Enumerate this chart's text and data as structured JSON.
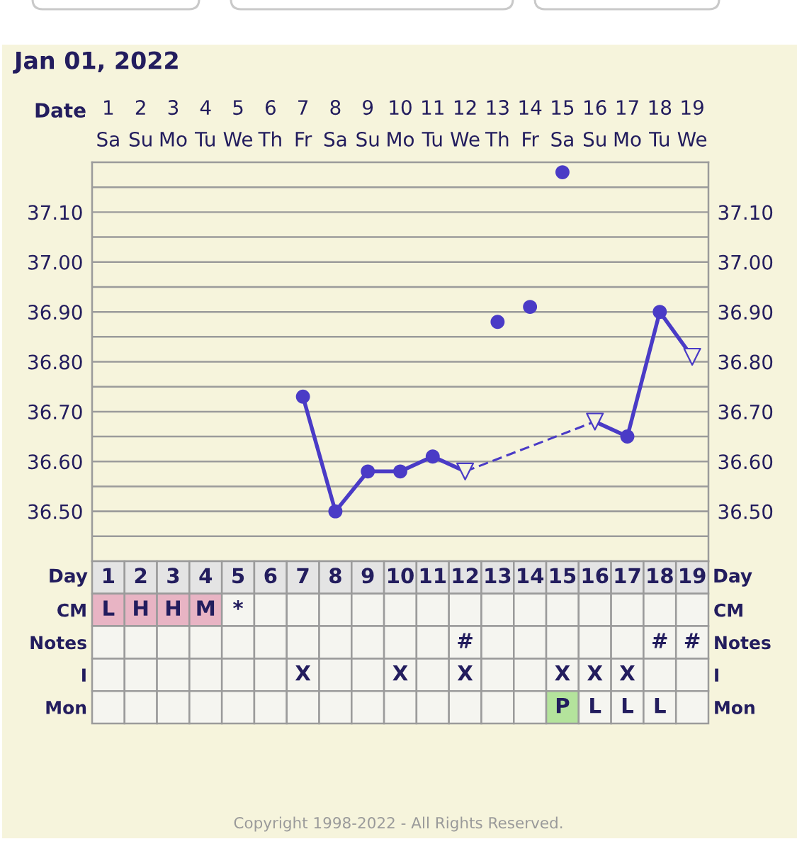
{
  "chart_data": [
    {
      "type": "line",
      "title": "Jan 01, 2022",
      "xlabel": "Date",
      "categories": [
        "1\nSa",
        "2\nSu",
        "3\nMo",
        "4\nTu",
        "5\nWe",
        "6\nTh",
        "7\nFr",
        "8\nSa",
        "9\nSu",
        "10\nMo",
        "11\nTu",
        "12\nWe",
        "13\nTh",
        "14\nFr",
        "15\nSa",
        "16\nSu",
        "17\nMo",
        "18\nTu",
        "19\nWe"
      ],
      "ylim": [
        36.4,
        37.2
      ],
      "yticks": [
        {
          "value": 36.45,
          "label": null
        },
        {
          "value": 36.5,
          "label": "36.50"
        },
        {
          "value": 36.55,
          "label": null
        },
        {
          "value": 36.6,
          "label": "36.60"
        },
        {
          "value": 36.65,
          "label": null
        },
        {
          "value": 36.7,
          "label": "36.70"
        },
        {
          "value": 36.75,
          "label": null
        },
        {
          "value": 36.8,
          "label": "36.80"
        },
        {
          "value": 36.85,
          "label": null
        },
        {
          "value": 36.9,
          "label": "36.90"
        },
        {
          "value": 36.95,
          "label": null
        },
        {
          "value": 37.0,
          "label": "37.00"
        },
        {
          "value": 37.05,
          "label": null
        },
        {
          "value": 37.1,
          "label": "37.10"
        },
        {
          "value": 37.15,
          "label": null
        }
      ],
      "y2lim": [
        36.4,
        37.2
      ],
      "y2ticks": [
        {
          "value": 36.45,
          "label": null
        },
        {
          "value": 36.5,
          "label": "36.50"
        },
        {
          "value": 36.55,
          "label": null
        },
        {
          "value": 36.6,
          "label": "36.60"
        },
        {
          "value": 36.65,
          "label": null
        },
        {
          "value": 36.7,
          "label": "36.70"
        },
        {
          "value": 36.75,
          "label": null
        },
        {
          "value": 36.8,
          "label": "36.80"
        },
        {
          "value": 36.85,
          "label": null
        },
        {
          "value": 36.9,
          "label": "36.90"
        },
        {
          "value": 36.95,
          "label": null
        },
        {
          "value": 37.0,
          "label": "37.00"
        },
        {
          "value": 37.05,
          "label": null
        },
        {
          "value": 37.1,
          "label": "37.10"
        },
        {
          "value": 37.15,
          "label": null
        }
      ],
      "grid": true,
      "series": [
        {
          "type": "line",
          "color": "#4a3bc6",
          "line_style": "solid",
          "marker": "none",
          "values": [
            null,
            null,
            null,
            null,
            null,
            null,
            36.73,
            36.5,
            36.58,
            36.58,
            36.61,
            36.58,
            null,
            null,
            null,
            null,
            null,
            null,
            null
          ]
        },
        {
          "type": "line",
          "color": "#4a3bc6",
          "line_style": "dashed",
          "marker": "none",
          "x": [
            "12\nWe",
            "16\nSu"
          ],
          "values": [
            36.58,
            36.68
          ]
        },
        {
          "type": "line",
          "color": "#4a3bc6",
          "line_style": "solid",
          "marker": "none",
          "values": [
            null,
            null,
            null,
            null,
            null,
            null,
            null,
            null,
            null,
            null,
            null,
            null,
            null,
            null,
            null,
            36.68,
            36.65,
            36.9,
            36.81
          ]
        },
        {
          "type": "scatter",
          "color": "#4a3bc6",
          "marker": "circle",
          "values": [
            null,
            null,
            null,
            null,
            null,
            null,
            36.73,
            36.5,
            36.58,
            36.58,
            36.61,
            null,
            36.88,
            36.91,
            37.18,
            null,
            36.65,
            36.9,
            null
          ]
        },
        {
          "type": "scatter",
          "color": "#4a3bc6",
          "marker": "triangle",
          "values": [
            null,
            null,
            null,
            null,
            null,
            null,
            null,
            null,
            null,
            null,
            null,
            36.58,
            null,
            null,
            null,
            36.68,
            null,
            null,
            36.81
          ]
        }
      ],
      "annotations": [
        "Copyright 1998-2022 - All Rights Reserved."
      ]
    },
    {
      "type": "heatmap",
      "xlabel": "Day",
      "categories": [
        "1",
        "2",
        "3",
        "4",
        "5",
        "6",
        "7",
        "8",
        "9",
        "10",
        "11",
        "12",
        "13",
        "14",
        "15",
        "16",
        "17",
        "18",
        "19"
      ],
      "y_categories": [
        "CM",
        "Notes",
        "I",
        "Mon"
      ],
      "y2_categories": [
        "CM",
        "Notes",
        "I",
        "Mon"
      ],
      "cells": [
        [
          null,
          null,
          null,
          null,
          null,
          null,
          null,
          null,
          null,
          null,
          null,
          null,
          null,
          null,
          null,
          null,
          null,
          null,
          null
        ],
        [
          null,
          null,
          null,
          null,
          null,
          null,
          null,
          null,
          null,
          null,
          null,
          null,
          null,
          null,
          null,
          null,
          null,
          null,
          null
        ],
        [
          null,
          null,
          null,
          null,
          null,
          null,
          null,
          null,
          null,
          null,
          null,
          null,
          null,
          null,
          null,
          null,
          null,
          null,
          null
        ],
        [
          null,
          null,
          null,
          null,
          null,
          null,
          null,
          null,
          null,
          null,
          null,
          null,
          null,
          null,
          null,
          null,
          null,
          null,
          null
        ]
      ],
      "cell_labels": [
        [
          "L",
          "H",
          "H",
          "M",
          "*",
          null,
          null,
          null,
          null,
          null,
          null,
          null,
          null,
          null,
          null,
          null,
          null,
          null,
          null
        ],
        [
          null,
          null,
          null,
          null,
          null,
          null,
          null,
          null,
          null,
          null,
          null,
          "#",
          null,
          null,
          null,
          null,
          null,
          "#",
          "#"
        ],
        [
          null,
          null,
          null,
          null,
          null,
          null,
          "X",
          null,
          null,
          "X",
          null,
          "X",
          null,
          null,
          "X",
          "X",
          "X",
          null,
          null
        ],
        [
          null,
          null,
          null,
          null,
          null,
          null,
          null,
          null,
          null,
          null,
          null,
          null,
          null,
          null,
          "P",
          "L",
          "L",
          "L",
          null
        ]
      ],
      "colors": [
        [
          "#e8b4c4",
          "#e8b4c4",
          "#e8b4c4",
          "#e8b4c4",
          null,
          null,
          null,
          null,
          null,
          null,
          null,
          null,
          null,
          null,
          null,
          null,
          null,
          null,
          null
        ],
        [
          null,
          null,
          null,
          null,
          null,
          null,
          null,
          null,
          null,
          null,
          null,
          null,
          null,
          null,
          null,
          null,
          null,
          null,
          null
        ],
        [
          null,
          null,
          null,
          null,
          null,
          null,
          null,
          null,
          null,
          null,
          null,
          null,
          null,
          null,
          null,
          null,
          null,
          null,
          null
        ],
        [
          null,
          null,
          null,
          null,
          null,
          null,
          null,
          null,
          null,
          null,
          null,
          null,
          null,
          null,
          "#b4e39c",
          null,
          null,
          null,
          null
        ]
      ]
    }
  ]
}
